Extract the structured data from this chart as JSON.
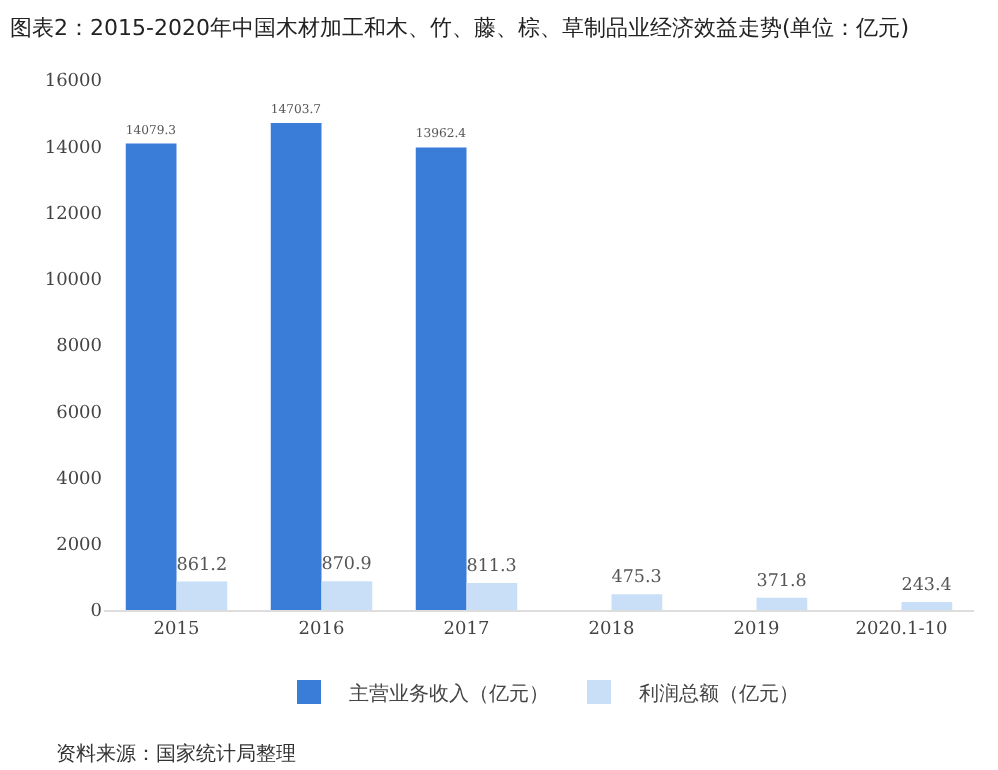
{
  "chart_data": {
    "type": "bar",
    "title": "图表2：2015-2020年中国木材加工和木、竹、藤、棕、草制品业经济效益走势(单位：亿元)",
    "categories": [
      "2015",
      "2016",
      "2017",
      "2018",
      "2019",
      "2020.1-10"
    ],
    "series": [
      {
        "name": "主营业务收入（亿元）",
        "color": "#3a7dd8",
        "values": [
          14079.3,
          14703.7,
          13962.4,
          null,
          null,
          null
        ],
        "value_labels": [
          "14079.3",
          "14703.7",
          "13962.4",
          null,
          null,
          null
        ]
      },
      {
        "name": "利润总额（亿元）",
        "color": "#c8dff7",
        "values": [
          861.2,
          870.9,
          811.3,
          475.3,
          371.8,
          243.4
        ],
        "value_labels": [
          "861.2",
          "870.9",
          "811.3",
          "475.3",
          "371.8",
          "243.4"
        ]
      }
    ],
    "ylim": [
      0,
      16000
    ],
    "yticks": [
      0,
      2000,
      4000,
      6000,
      8000,
      10000,
      12000,
      14000,
      16000
    ],
    "grid": false,
    "legend": "bottom",
    "annotations": [
      "资料来源：国家统计局整理"
    ]
  }
}
